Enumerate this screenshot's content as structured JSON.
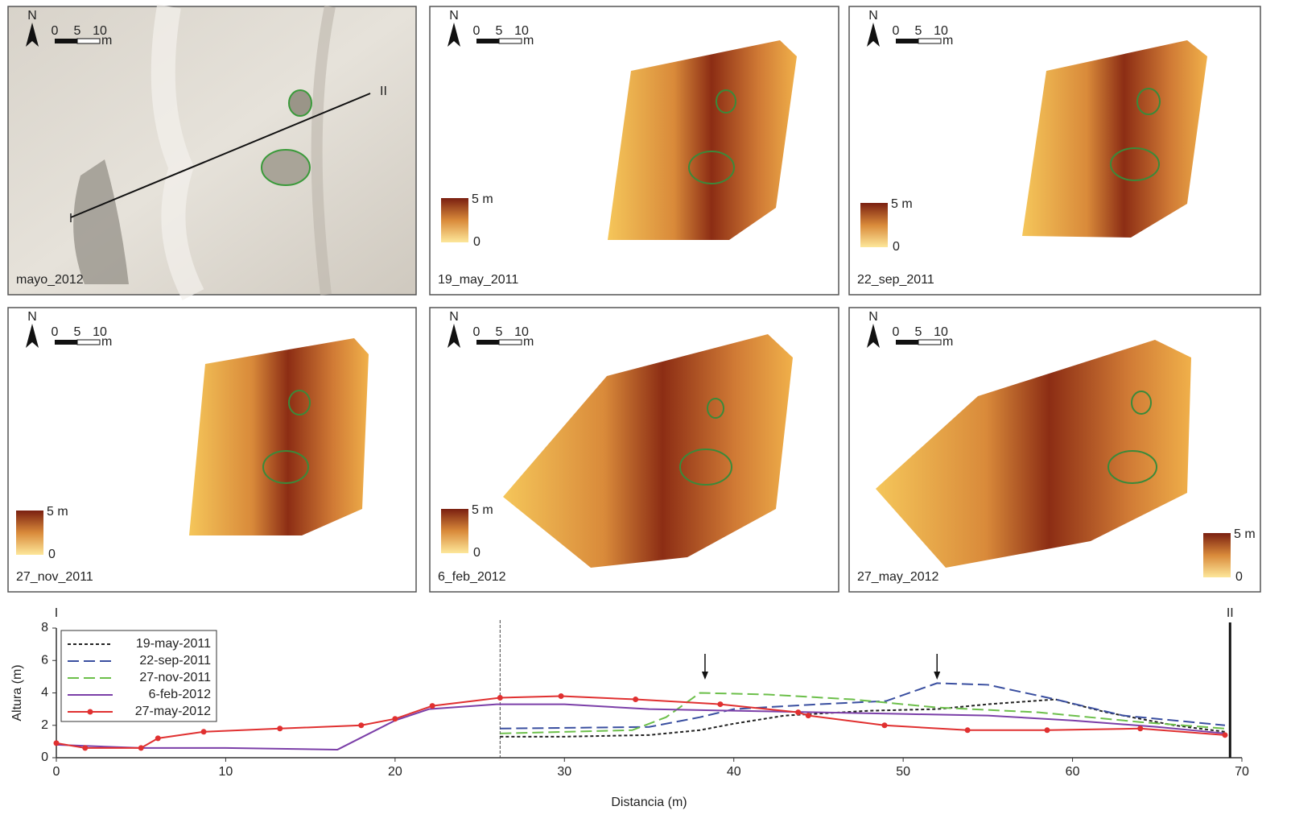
{
  "maps": [
    {
      "label": "mayo_2012"
    },
    {
      "label": "19_may_2011"
    },
    {
      "label": "22_sep_2011"
    },
    {
      "label": "27_nov_2011"
    },
    {
      "label": "6_feb_2012"
    },
    {
      "label": "27_may_2012"
    }
  ],
  "scale": {
    "north": "N",
    "ticks": [
      "0",
      "5",
      "10"
    ],
    "unit": "m"
  },
  "colorbar": {
    "max": "5 m",
    "min": "0"
  },
  "chart_data": {
    "type": "line",
    "xlabel": "Distancia (m)",
    "ylabel": "Altura (m)",
    "xlim": [
      0,
      70
    ],
    "xticks": [
      0,
      10,
      20,
      30,
      40,
      50,
      60,
      70
    ],
    "ylim": [
      0,
      8
    ],
    "yticks": [
      0,
      2,
      4,
      6,
      8
    ],
    "section_labels": [
      {
        "label": "I",
        "x": 0
      },
      {
        "label": "II",
        "x": 69.3
      }
    ],
    "dashed_line_x": 26.2,
    "arrows_x": [
      38.3,
      52
    ],
    "series": [
      {
        "name": "19-may-2011",
        "color": "#222222",
        "style": "dotted",
        "x": [
          26.2,
          30,
          35,
          38,
          40,
          43,
          48,
          52,
          55,
          59,
          62,
          66,
          69
        ],
        "values": [
          1.3,
          1.3,
          1.4,
          1.7,
          2.1,
          2.6,
          2.9,
          3.0,
          3.3,
          3.6,
          2.8,
          2.0,
          1.6
        ]
      },
      {
        "name": "22-sep-2011",
        "color": "#3a4fa0",
        "style": "dashed",
        "x": [
          26.2,
          35,
          38,
          40,
          45,
          49,
          52,
          55,
          59,
          63,
          69
        ],
        "values": [
          1.8,
          1.9,
          2.5,
          3.0,
          3.3,
          3.5,
          4.6,
          4.5,
          3.6,
          2.6,
          2.0
        ]
      },
      {
        "name": "27-nov-2011",
        "color": "#6cbf4a",
        "style": "dashed",
        "x": [
          26.2,
          34,
          36,
          38,
          42,
          47,
          52,
          58,
          64,
          69
        ],
        "values": [
          1.5,
          1.7,
          2.5,
          4.0,
          3.9,
          3.6,
          3.1,
          2.8,
          2.2,
          1.8
        ]
      },
      {
        "name": "6-feb-2012",
        "color": "#7b3fa8",
        "style": "solid",
        "x": [
          0,
          5,
          10,
          16.6,
          20,
          22,
          26,
          30,
          35,
          40,
          45,
          50,
          55,
          60,
          65,
          69
        ],
        "values": [
          0.8,
          0.6,
          0.6,
          0.5,
          2.3,
          3.0,
          3.3,
          3.3,
          3.0,
          2.9,
          2.8,
          2.7,
          2.6,
          2.3,
          1.9,
          1.5
        ]
      },
      {
        "name": "27-may-2012",
        "color": "#e03030",
        "style": "solid",
        "marker": true,
        "x": [
          0,
          1.7,
          5,
          6,
          8.7,
          13.2,
          18,
          20,
          22.2,
          26.2,
          29.8,
          34.2,
          39.2,
          43.8,
          44.4,
          48.9,
          53.8,
          58.5,
          64,
          69
        ],
        "values": [
          0.9,
          0.6,
          0.6,
          1.2,
          1.6,
          1.8,
          2.0,
          2.4,
          3.2,
          3.7,
          3.8,
          3.6,
          3.3,
          2.8,
          2.6,
          2.0,
          1.7,
          1.7,
          1.8,
          1.4
        ]
      }
    ]
  }
}
